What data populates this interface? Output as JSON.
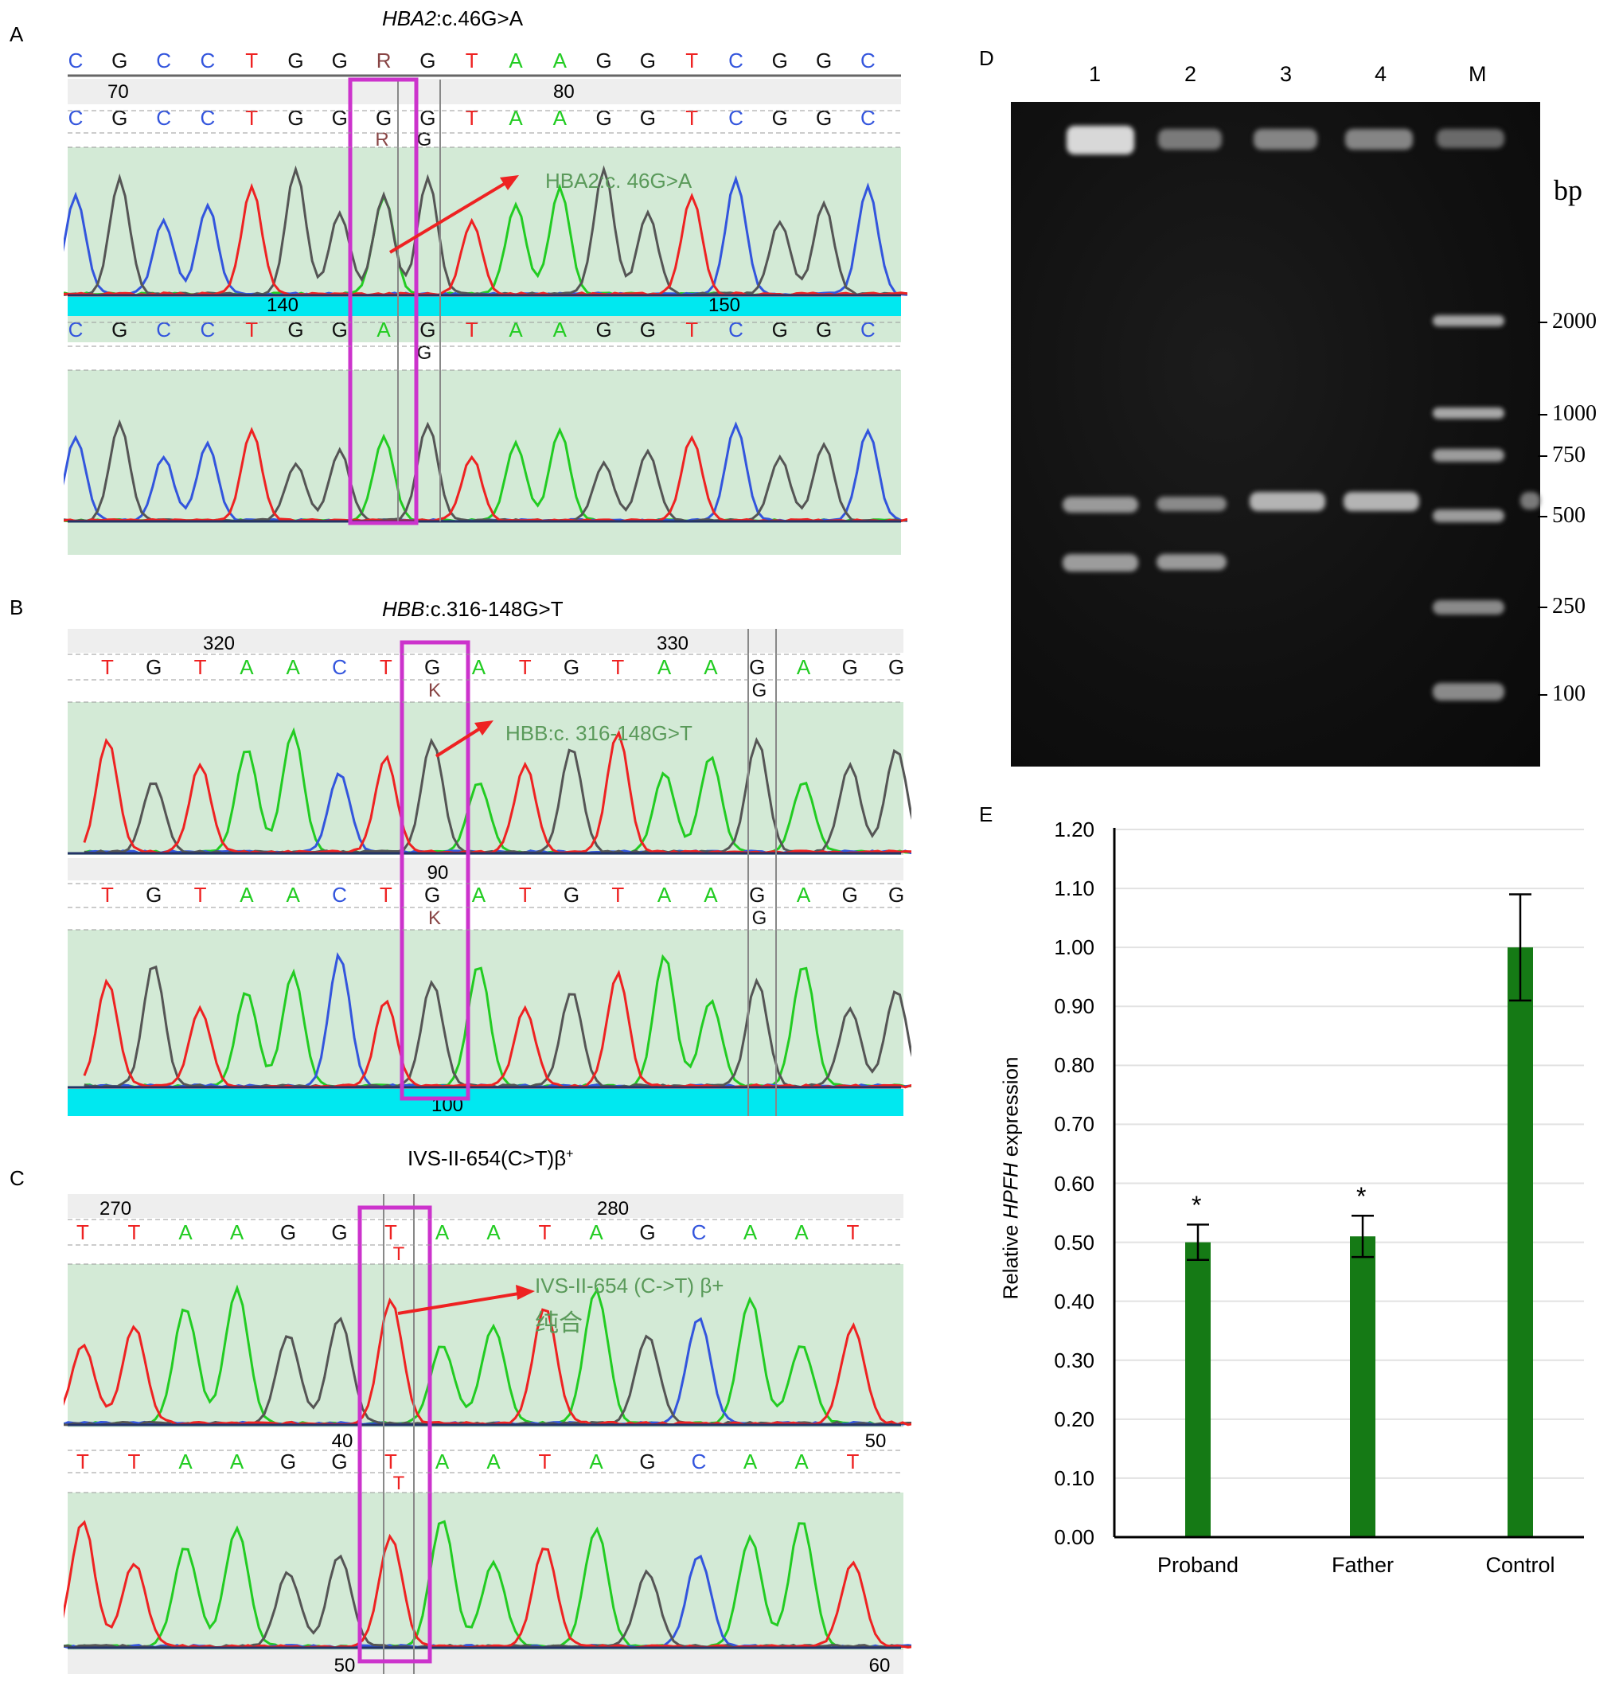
{
  "panels": {
    "A": {
      "label": "A",
      "title_gene": "HBA2",
      "title_rest": ":c.46G>A",
      "seq_top": [
        "C",
        "G",
        "C",
        "C",
        "T",
        "G",
        "G",
        "R",
        "G",
        "T",
        "A",
        "A",
        "G",
        "G",
        "T",
        "C",
        "G",
        "G",
        "C"
      ],
      "pos_top": [
        "70",
        "80"
      ],
      "seq_ref": [
        "C",
        "G",
        "C",
        "C",
        "T",
        "G",
        "G",
        "G",
        "G",
        "T",
        "A",
        "A",
        "G",
        "G",
        "T",
        "C",
        "G",
        "G",
        "C"
      ],
      "sub_ref": [
        "R",
        "G"
      ],
      "annotation": "HBA2:c. 46G>A",
      "pos_mid": [
        "140",
        "150"
      ],
      "seq_bottom": [
        "C",
        "G",
        "C",
        "C",
        "T",
        "G",
        "G",
        "A",
        "G",
        "T",
        "A",
        "A",
        "G",
        "G",
        "T",
        "C",
        "G",
        "G",
        "C"
      ],
      "sub_bottom": [
        "G"
      ]
    },
    "B": {
      "label": "B",
      "title_gene": "HBB",
      "title_rest": ":c.316-148G>T",
      "pos_top": [
        "320",
        "330"
      ],
      "seq_top": [
        "T",
        "G",
        "T",
        "A",
        "A",
        "C",
        "T",
        "G",
        "A",
        "T",
        "G",
        "T",
        "A",
        "A",
        "G",
        "A",
        "G",
        "G"
      ],
      "sub_top": [
        "K",
        "G"
      ],
      "annotation": "HBB:c. 316-148G>T",
      "pos_mid": [
        "90"
      ],
      "seq_bottom": [
        "T",
        "G",
        "T",
        "A",
        "A",
        "C",
        "T",
        "G",
        "A",
        "T",
        "G",
        "T",
        "A",
        "A",
        "G",
        "A",
        "G",
        "G"
      ],
      "sub_bottom": [
        "K",
        "G"
      ],
      "pos_bottom": [
        "100"
      ]
    },
    "C": {
      "label": "C",
      "title": "IVS-II-654(C>T)β",
      "title_sup": "+",
      "pos_top": [
        "270",
        "280"
      ],
      "seq_top": [
        "T",
        "T",
        "A",
        "A",
        "G",
        "G",
        "T",
        "A",
        "A",
        "T",
        "A",
        "G",
        "C",
        "A",
        "A",
        "T"
      ],
      "sub_top": [
        "T"
      ],
      "annotation": "IVS-II-654 (C->T) β+",
      "annotation2": "纯合",
      "pos_mid": [
        "40",
        "50"
      ],
      "seq_bottom": [
        "T",
        "T",
        "A",
        "A",
        "G",
        "G",
        "T",
        "A",
        "A",
        "T",
        "A",
        "G",
        "C",
        "A",
        "A",
        "T"
      ],
      "sub_bottom": [
        "T"
      ],
      "pos_bottom": [
        "50",
        "60"
      ]
    },
    "D": {
      "label": "D",
      "lanes": [
        "1",
        "2",
        "3",
        "4",
        "M"
      ],
      "unit": "bp",
      "markers": [
        "2000",
        "1000",
        "750",
        "500",
        "250",
        "100"
      ]
    },
    "E": {
      "label": "E",
      "ylabel_pre": "Relative ",
      "ylabel_gene": "HPFH",
      "ylabel_post": " expression",
      "significance": "*"
    }
  },
  "colors": {
    "A": "#22cc22",
    "C": "#3355dd",
    "G": "#111111",
    "T": "#ee2222",
    "R": "#884444",
    "K": "#884444",
    "trace_bg": "#d3ead6",
    "cyan_bar": "#00e8f0",
    "highlight_box": "#cc33cc",
    "annotation": "#5a9a5a",
    "bar": "#157a15"
  },
  "chart_data": {
    "type": "bar",
    "categories": [
      "Proband",
      "Father",
      "Control"
    ],
    "values": [
      0.5,
      0.51,
      1.0
    ],
    "errors": [
      0.03,
      0.035,
      0.09
    ],
    "significance": [
      "*",
      "*",
      ""
    ],
    "ylabel": "Relative HPFH expression",
    "ylim": [
      0,
      1.2
    ],
    "yticks": [
      "0.00",
      "0.10",
      "0.20",
      "0.30",
      "0.40",
      "0.50",
      "0.60",
      "0.70",
      "0.80",
      "0.90",
      "1.00",
      "1.10",
      "1.20"
    ],
    "grid": true
  }
}
